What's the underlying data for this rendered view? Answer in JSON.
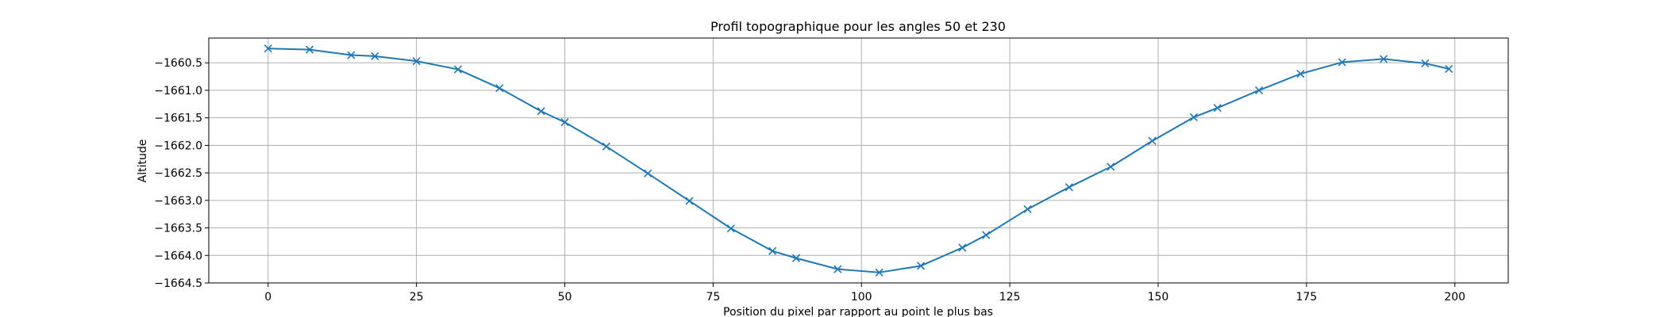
{
  "chart_data": {
    "type": "line",
    "title": "Profil topographique pour les angles 50 et 230",
    "xlabel": "Position du pixel par rapport au point le plus bas",
    "ylabel": "Altitude",
    "xlim": [
      -10,
      209
    ],
    "ylim": [
      -1664.5,
      -1660.05
    ],
    "xticks": [
      0,
      25,
      50,
      75,
      100,
      125,
      150,
      175,
      200
    ],
    "yticks": [
      -1664.5,
      -1664.0,
      -1663.5,
      -1663.0,
      -1662.5,
      -1662.0,
      -1661.5,
      -1661.0,
      -1660.5
    ],
    "xtick_labels": [
      "0",
      "25",
      "50",
      "75",
      "100",
      "125",
      "150",
      "175",
      "200"
    ],
    "ytick_labels": [
      "−1664.5",
      "−1664.0",
      "−1663.5",
      "−1663.0",
      "−1662.5",
      "−1662.0",
      "−1661.5",
      "−1661.0",
      "−1660.5"
    ],
    "grid": true,
    "marker": "x",
    "series": [
      {
        "color": "#1f77b4",
        "points": [
          [
            0,
            -1660.24
          ],
          [
            7,
            -1660.26
          ],
          [
            14,
            -1660.36
          ],
          [
            18,
            -1660.38
          ],
          [
            25,
            -1660.47
          ],
          [
            32,
            -1660.62
          ],
          [
            39,
            -1660.96
          ],
          [
            46,
            -1661.38
          ],
          [
            50,
            -1661.58
          ],
          [
            57,
            -1662.02
          ],
          [
            64,
            -1662.51
          ],
          [
            71,
            -1663.01
          ],
          [
            78,
            -1663.51
          ],
          [
            85,
            -1663.92
          ],
          [
            89,
            -1664.05
          ],
          [
            96,
            -1664.25
          ],
          [
            103,
            -1664.31
          ],
          [
            110,
            -1664.19
          ],
          [
            117,
            -1663.86
          ],
          [
            121,
            -1663.63
          ],
          [
            128,
            -1663.16
          ],
          [
            135,
            -1662.76
          ],
          [
            142,
            -1662.39
          ],
          [
            149,
            -1661.92
          ],
          [
            156,
            -1661.49
          ],
          [
            160,
            -1661.32
          ],
          [
            167,
            -1661.0
          ],
          [
            174,
            -1660.7
          ],
          [
            181,
            -1660.49
          ],
          [
            188,
            -1660.43
          ],
          [
            195,
            -1660.51
          ],
          [
            199,
            -1660.61
          ]
        ]
      }
    ]
  }
}
